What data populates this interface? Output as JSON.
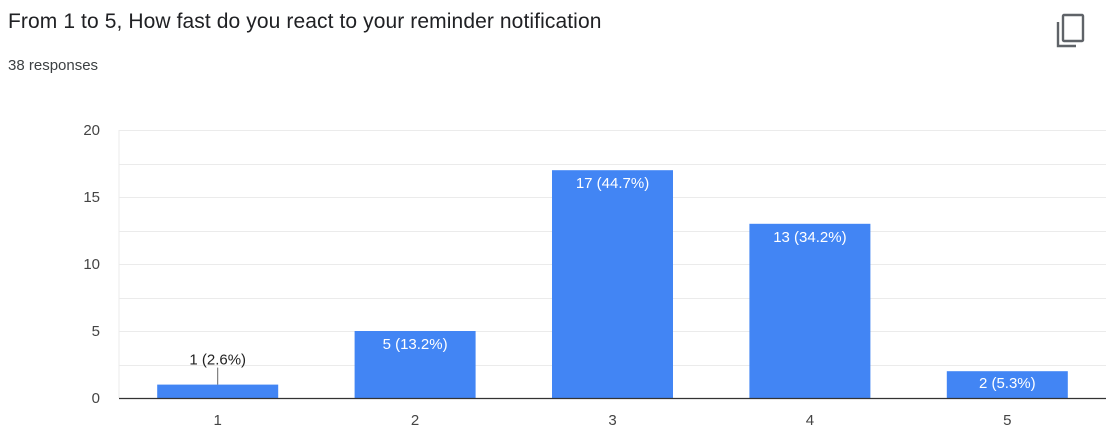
{
  "header": {
    "title": "From 1 to 5, How fast do you react to your reminder notification",
    "responses": "38 responses",
    "copy_icon": "copy-icon"
  },
  "colors": {
    "bar": "#4285f4",
    "grid": "#ebebeb",
    "axis": "#333333"
  },
  "chart_data": {
    "type": "bar",
    "categories": [
      "1",
      "2",
      "3",
      "4",
      "5"
    ],
    "values": [
      1,
      5,
      17,
      13,
      2
    ],
    "data_labels": [
      "1 (2.6%)",
      "5 (13.2%)",
      "17 (44.7%)",
      "13 (34.2%)",
      "2 (5.3%)"
    ],
    "ylim": [
      0,
      20
    ],
    "yticks": [
      0,
      5,
      10,
      15,
      20
    ],
    "grid": true,
    "legend": "none"
  }
}
